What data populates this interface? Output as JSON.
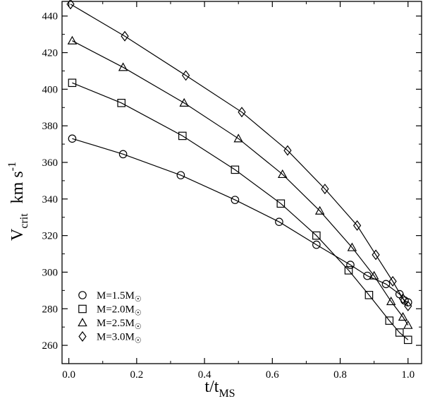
{
  "chart_data": {
    "type": "line",
    "title": "",
    "xlabel": {
      "main": "t/t",
      "sub": "MS"
    },
    "ylabel": {
      "main": "V",
      "sub": "crit",
      "units": "km s",
      "units_sup": "-1"
    },
    "xlim": [
      -0.02,
      1.04
    ],
    "ylim": [
      250,
      448
    ],
    "xticks": [
      {
        "value": 0.0,
        "label": "0.0"
      },
      {
        "value": 0.2,
        "label": "0.2"
      },
      {
        "value": 0.4,
        "label": "0.4"
      },
      {
        "value": 0.6,
        "label": "0.6"
      },
      {
        "value": 0.8,
        "label": "0.8"
      },
      {
        "value": 1.0,
        "label": "1.0"
      }
    ],
    "yticks": [
      {
        "value": 260,
        "label": "260"
      },
      {
        "value": 280,
        "label": "280"
      },
      {
        "value": 300,
        "label": "300"
      },
      {
        "value": 320,
        "label": "320"
      },
      {
        "value": 340,
        "label": "340"
      },
      {
        "value": 360,
        "label": "360"
      },
      {
        "value": 380,
        "label": "380"
      },
      {
        "value": 400,
        "label": "400"
      },
      {
        "value": 420,
        "label": "420"
      },
      {
        "value": 440,
        "label": "440"
      }
    ],
    "grid": false,
    "legend_position": "bottom-left",
    "series": [
      {
        "name": "M=1.5M",
        "name_sub": "☉",
        "marker": "circle",
        "points": [
          [
            0.01,
            373
          ],
          [
            0.16,
            364.5
          ],
          [
            0.33,
            353
          ],
          [
            0.49,
            339.5
          ],
          [
            0.62,
            327.5
          ],
          [
            0.73,
            315
          ],
          [
            0.83,
            304
          ],
          [
            0.88,
            298
          ],
          [
            0.935,
            293.5
          ],
          [
            0.975,
            288
          ],
          [
            0.99,
            284.5
          ],
          [
            1.0,
            283.5
          ]
        ]
      },
      {
        "name": "M=2.0M",
        "name_sub": "☉",
        "marker": "square",
        "points": [
          [
            0.01,
            403.5
          ],
          [
            0.155,
            392.5
          ],
          [
            0.335,
            374.5
          ],
          [
            0.49,
            356
          ],
          [
            0.625,
            337.5
          ],
          [
            0.73,
            320
          ],
          [
            0.825,
            301
          ],
          [
            0.885,
            287.5
          ],
          [
            0.945,
            273.5
          ],
          [
            0.975,
            267
          ],
          [
            1.0,
            263
          ]
        ]
      },
      {
        "name": "M=2.5M",
        "name_sub": "☉",
        "marker": "triangle",
        "points": [
          [
            0.01,
            426.5
          ],
          [
            0.16,
            412
          ],
          [
            0.34,
            392.5
          ],
          [
            0.5,
            373
          ],
          [
            0.63,
            353.5
          ],
          [
            0.74,
            333.5
          ],
          [
            0.835,
            313.5
          ],
          [
            0.9,
            298
          ],
          [
            0.95,
            284
          ],
          [
            0.985,
            275.5
          ],
          [
            1.0,
            271
          ]
        ]
      },
      {
        "name": "M=3.0M",
        "name_sub": "☉",
        "marker": "diamond",
        "points": [
          [
            0.005,
            446.5
          ],
          [
            0.165,
            429
          ],
          [
            0.345,
            407.5
          ],
          [
            0.51,
            387.5
          ],
          [
            0.645,
            366.5
          ],
          [
            0.755,
            345.5
          ],
          [
            0.85,
            325.5
          ],
          [
            0.905,
            309.5
          ],
          [
            0.955,
            295
          ],
          [
            0.985,
            285.5
          ],
          [
            1.0,
            281.5
          ]
        ]
      }
    ]
  }
}
